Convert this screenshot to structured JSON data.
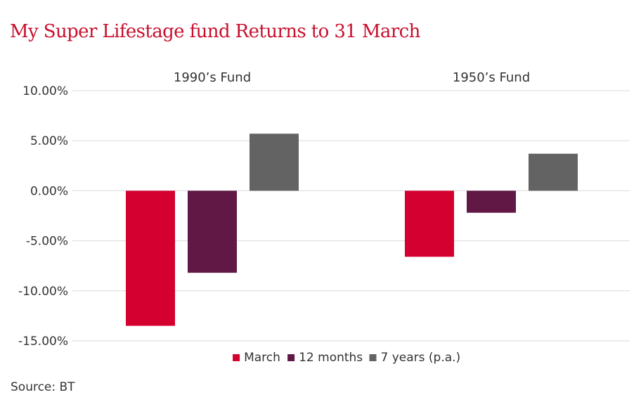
{
  "title": "My Super Lifestage fund Returns to 31 March",
  "source": "Source: BT",
  "chart_data": {
    "type": "bar",
    "title": "My Super Lifestage fund Returns to 31 March",
    "categories": [
      "1990’s Fund",
      "1950’s Fund"
    ],
    "series": [
      {
        "name": "March",
        "color": "#d40030",
        "values": [
          -13.5,
          -6.6
        ]
      },
      {
        "name": "12 months",
        "color": "#611845",
        "values": [
          -8.2,
          -2.2
        ]
      },
      {
        "name": "7 years (p.a.)",
        "color": "#636363",
        "values": [
          5.7,
          3.7
        ]
      }
    ],
    "ylim": [
      -15,
      10
    ],
    "yticks": [
      10,
      5,
      0,
      -5,
      -10,
      -15
    ],
    "ytick_labels": [
      "10.00%",
      "5.00%",
      "0.00%",
      "-5.00%",
      "-10.00%",
      "-15.00%"
    ],
    "xlabel": "",
    "ylabel": "",
    "grid": true,
    "legend_position": "bottom",
    "category_label_position": "top"
  }
}
